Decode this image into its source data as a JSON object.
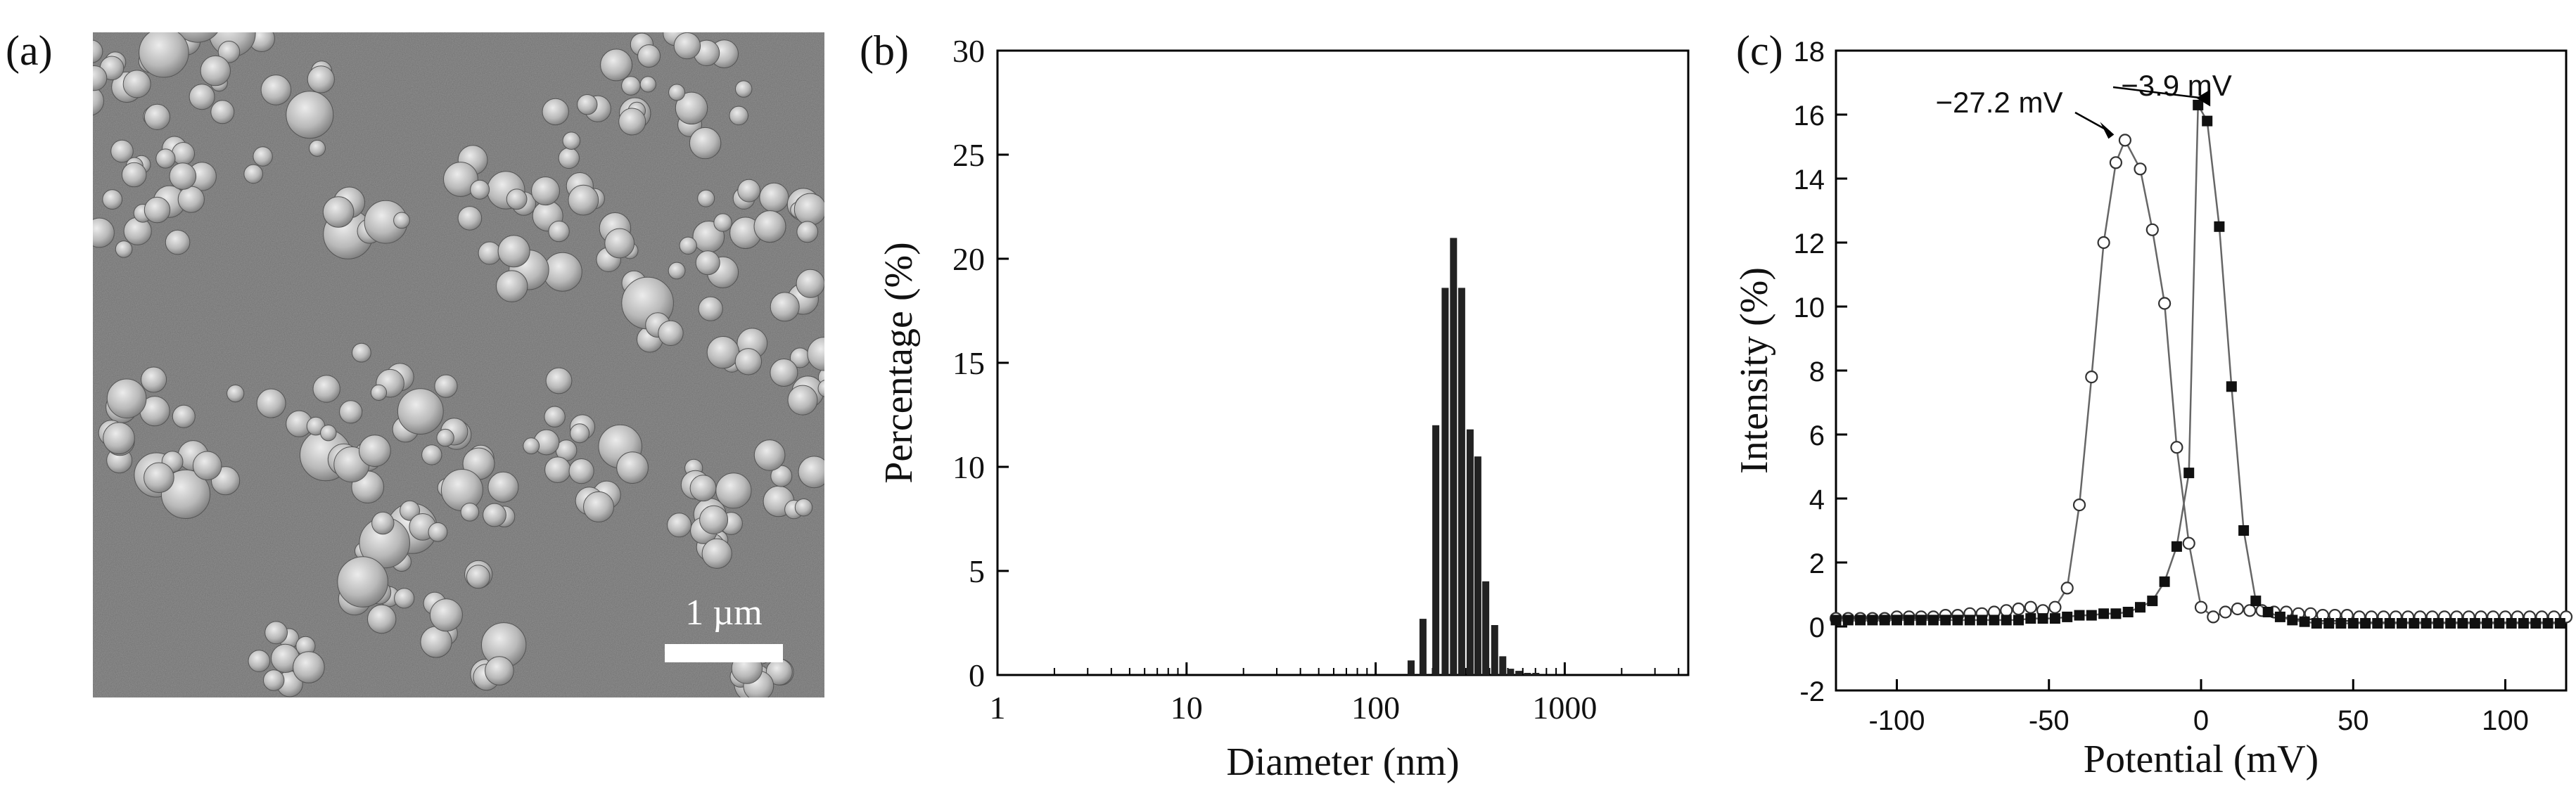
{
  "panels": {
    "a": {
      "label": "(a)",
      "scale_bar": "1 µm"
    },
    "b": {
      "label": "(b)"
    },
    "c": {
      "label": "(c)"
    }
  },
  "chart_data": [
    {
      "panel": "b",
      "type": "bar",
      "xlabel": "Diameter (nm)",
      "ylabel": "Percentage (%)",
      "x_scale": "log",
      "xlim": [
        1,
        4500
      ],
      "ylim": [
        0,
        30
      ],
      "xticks": [
        1,
        10,
        100,
        1000
      ],
      "xtick_labels": [
        "1",
        "10",
        "100",
        "1000"
      ],
      "yticks": [
        0,
        5,
        10,
        15,
        20,
        25,
        30
      ],
      "ytick_labels": [
        "0",
        "5",
        "10",
        "15",
        "20",
        "25",
        "30"
      ],
      "x": [
        154,
        178,
        208,
        233,
        258,
        285,
        316,
        347,
        382,
        426,
        470,
        517,
        572,
        635,
        703
      ],
      "values": [
        0.7,
        2.7,
        12.0,
        18.6,
        21.0,
        18.6,
        11.8,
        10.5,
        4.5,
        2.4,
        0.9,
        0.3,
        0.2,
        0.1,
        0.1
      ],
      "grid": false
    },
    {
      "panel": "c",
      "type": "line",
      "xlabel": "Potential (mV)",
      "ylabel": "Intensity (%)",
      "xlim": [
        -120,
        120
      ],
      "ylim": [
        -2,
        18
      ],
      "xticks": [
        -100,
        -50,
        0,
        50,
        100
      ],
      "xtick_labels": [
        "-100",
        "-50",
        "0",
        "50",
        "100"
      ],
      "yticks": [
        -2,
        0,
        2,
        4,
        6,
        8,
        10,
        12,
        14,
        16,
        18
      ],
      "ytick_labels": [
        "-2",
        "0",
        "2",
        "4",
        "6",
        "8",
        "10",
        "12",
        "14",
        "16",
        "18"
      ],
      "grid": false,
      "series": [
        {
          "marker": "open-circle",
          "x": [
            -120,
            -116,
            -112,
            -108,
            -104,
            -100,
            -96,
            -92,
            -88,
            -84,
            -80,
            -76,
            -72,
            -68,
            -64,
            -60,
            -56,
            -52,
            -48,
            -44,
            -40,
            -36,
            -32,
            -28,
            -25,
            -20,
            -16,
            -12,
            -8,
            -4,
            0,
            4,
            8,
            12,
            16,
            20,
            24,
            28,
            32,
            36,
            40,
            44,
            48,
            52,
            56,
            60,
            64,
            68,
            72,
            76,
            80,
            84,
            88,
            92,
            96,
            100,
            104,
            108,
            112,
            116,
            120
          ],
          "y": [
            0.25,
            0.25,
            0.25,
            0.25,
            0.25,
            0.3,
            0.3,
            0.3,
            0.3,
            0.35,
            0.35,
            0.4,
            0.4,
            0.45,
            0.5,
            0.55,
            0.6,
            0.5,
            0.6,
            1.2,
            3.8,
            7.8,
            12.0,
            14.5,
            15.2,
            14.3,
            12.4,
            10.1,
            5.6,
            2.6,
            0.6,
            0.3,
            0.45,
            0.55,
            0.5,
            0.5,
            0.45,
            0.45,
            0.4,
            0.4,
            0.35,
            0.35,
            0.35,
            0.3,
            0.3,
            0.3,
            0.3,
            0.3,
            0.3,
            0.3,
            0.3,
            0.3,
            0.3,
            0.3,
            0.3,
            0.3,
            0.3,
            0.3,
            0.3,
            0.3,
            0.3
          ]
        },
        {
          "marker": "filled-square",
          "x": [
            -120,
            -116,
            -112,
            -108,
            -104,
            -100,
            -96,
            -92,
            -88,
            -84,
            -80,
            -76,
            -72,
            -68,
            -64,
            -60,
            -56,
            -52,
            -48,
            -44,
            -40,
            -36,
            -32,
            -28,
            -24,
            -20,
            -16,
            -12,
            -8,
            -4,
            -1,
            2,
            6,
            10,
            14,
            18,
            22,
            26,
            30,
            34,
            38,
            42,
            46,
            50,
            54,
            58,
            62,
            66,
            70,
            74,
            78,
            82,
            86,
            90,
            94,
            98,
            102,
            106,
            110,
            114,
            118
          ],
          "y": [
            0.2,
            0.2,
            0.2,
            0.2,
            0.2,
            0.2,
            0.2,
            0.2,
            0.2,
            0.2,
            0.2,
            0.2,
            0.2,
            0.2,
            0.2,
            0.2,
            0.25,
            0.25,
            0.25,
            0.3,
            0.35,
            0.35,
            0.4,
            0.4,
            0.45,
            0.6,
            0.8,
            1.4,
            2.5,
            4.8,
            16.3,
            15.8,
            12.5,
            7.5,
            3.0,
            0.8,
            0.45,
            0.3,
            0.2,
            0.15,
            0.1,
            0.1,
            0.1,
            0.1,
            0.1,
            0.1,
            0.1,
            0.1,
            0.1,
            0.1,
            0.1,
            0.1,
            0.1,
            0.1,
            0.1,
            0.1,
            0.1,
            0.1,
            0.1,
            0.1,
            0.1
          ]
        }
      ],
      "annotations": [
        {
          "text": "−27.2 mV",
          "x": -27.2,
          "y": 15.2
        },
        {
          "text": "−3.9 mV",
          "x": -3.9,
          "y": 16.3
        }
      ]
    }
  ]
}
